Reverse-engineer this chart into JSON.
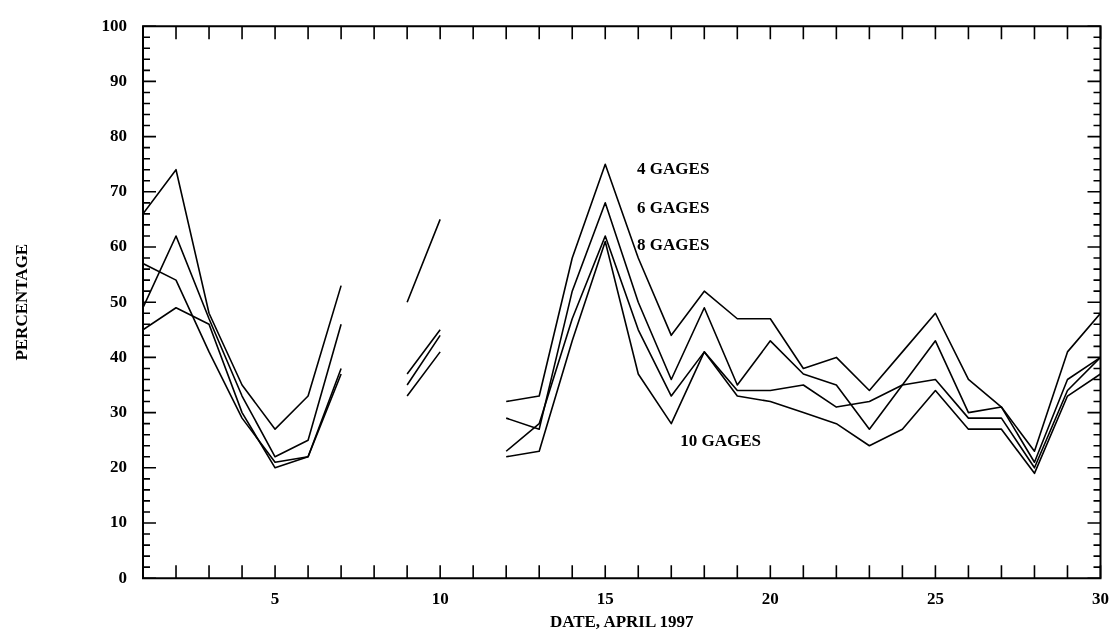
{
  "chart_data": {
    "type": "line",
    "xlabel": "DATE, APRIL 1997",
    "ylabel": "PERCENTAGE",
    "x": [
      1,
      2,
      3,
      4,
      5,
      6,
      7,
      8,
      9,
      10,
      11,
      12,
      13,
      14,
      15,
      16,
      17,
      18,
      19,
      20,
      21,
      22,
      23,
      24,
      25,
      26,
      27,
      28,
      29,
      30
    ],
    "series": [
      {
        "color": "#000000",
        "values": [
          66,
          74,
          48,
          35,
          27,
          33,
          53,
          null,
          50,
          65,
          null,
          32,
          33,
          58,
          75,
          58,
          44,
          52,
          47,
          47,
          38,
          40,
          34,
          41,
          48,
          36,
          31,
          23,
          41,
          48
        ]
      },
      {
        "color": "#000000",
        "values": [
          49,
          62,
          47,
          33,
          22,
          25,
          46,
          null,
          37,
          45,
          null,
          29,
          27,
          52,
          68,
          50,
          36,
          49,
          35,
          43,
          37,
          35,
          27,
          35,
          43,
          30,
          31,
          21,
          36,
          40
        ]
      },
      {
        "color": "#000000",
        "values": [
          57,
          54,
          41,
          29,
          21,
          22,
          38,
          null,
          35,
          44,
          null,
          23,
          28,
          47,
          62,
          45,
          33,
          41,
          34,
          34,
          35,
          31,
          32,
          35,
          36,
          29,
          29,
          20,
          34,
          40
        ]
      },
      {
        "color": "#000000",
        "values": [
          45,
          49,
          46,
          30,
          20,
          22,
          37,
          null,
          33,
          41,
          null,
          22,
          23,
          43,
          61,
          37,
          28,
          41,
          33,
          32,
          30,
          28,
          24,
          27,
          34,
          27,
          27,
          19,
          33,
          37
        ]
      }
    ],
    "xlim": [
      1,
      30
    ],
    "xticks": [
      {
        "value": 1,
        "label": null
      },
      {
        "value": 2,
        "label": null
      },
      {
        "value": 3,
        "label": null
      },
      {
        "value": 4,
        "label": null
      },
      5,
      {
        "value": 6,
        "label": null
      },
      {
        "value": 7,
        "label": null
      },
      {
        "value": 8,
        "label": null
      },
      {
        "value": 9,
        "label": null
      },
      10,
      {
        "value": 11,
        "label": null
      },
      {
        "value": 12,
        "label": null
      },
      {
        "value": 13,
        "label": null
      },
      {
        "value": 14,
        "label": null
      },
      15,
      {
        "value": 16,
        "label": null
      },
      {
        "value": 17,
        "label": null
      },
      {
        "value": 18,
        "label": null
      },
      {
        "value": 19,
        "label": null
      },
      20,
      {
        "value": 21,
        "label": null
      },
      {
        "value": 22,
        "label": null
      },
      {
        "value": 23,
        "label": null
      },
      {
        "value": 24,
        "label": null
      },
      25,
      {
        "value": 26,
        "label": null
      },
      {
        "value": 27,
        "label": null
      },
      {
        "value": 28,
        "label": null
      },
      {
        "value": 29,
        "label": null
      },
      30
    ],
    "ylim": [
      0,
      100
    ],
    "yticks": [
      0,
      {
        "value": 2,
        "label": null
      },
      {
        "value": 4,
        "label": null
      },
      {
        "value": 6,
        "label": null
      },
      {
        "value": 8,
        "label": null
      },
      10,
      {
        "value": 12,
        "label": null
      },
      {
        "value": 14,
        "label": null
      },
      {
        "value": 16,
        "label": null
      },
      {
        "value": 18,
        "label": null
      },
      20,
      {
        "value": 22,
        "label": null
      },
      {
        "value": 24,
        "label": null
      },
      {
        "value": 26,
        "label": null
      },
      {
        "value": 28,
        "label": null
      },
      30,
      {
        "value": 32,
        "label": null
      },
      {
        "value": 34,
        "label": null
      },
      {
        "value": 36,
        "label": null
      },
      {
        "value": 38,
        "label": null
      },
      40,
      {
        "value": 42,
        "label": null
      },
      {
        "value": 44,
        "label": null
      },
      {
        "value": 46,
        "label": null
      },
      {
        "value": 48,
        "label": null
      },
      50,
      {
        "value": 52,
        "label": null
      },
      {
        "value": 54,
        "label": null
      },
      {
        "value": 56,
        "label": null
      },
      {
        "value": 58,
        "label": null
      },
      60,
      {
        "value": 62,
        "label": null
      },
      {
        "value": 64,
        "label": null
      },
      {
        "value": 66,
        "label": null
      },
      {
        "value": 68,
        "label": null
      },
      70,
      {
        "value": 72,
        "label": null
      },
      {
        "value": 74,
        "label": null
      },
      {
        "value": 76,
        "label": null
      },
      {
        "value": 78,
        "label": null
      },
      80,
      {
        "value": 82,
        "label": null
      },
      {
        "value": 84,
        "label": null
      },
      {
        "value": 86,
        "label": null
      },
      {
        "value": 88,
        "label": null
      },
      90,
      {
        "value": 92,
        "label": null
      },
      {
        "value": 94,
        "label": null
      },
      {
        "value": 96,
        "label": null
      },
      {
        "value": 98,
        "label": null
      },
      100
    ],
    "annotations": [
      "4 GAGES",
      "6 GAGES",
      "8 GAGES",
      "10 GAGES"
    ],
    "marker": "none",
    "line_style": "solid"
  }
}
